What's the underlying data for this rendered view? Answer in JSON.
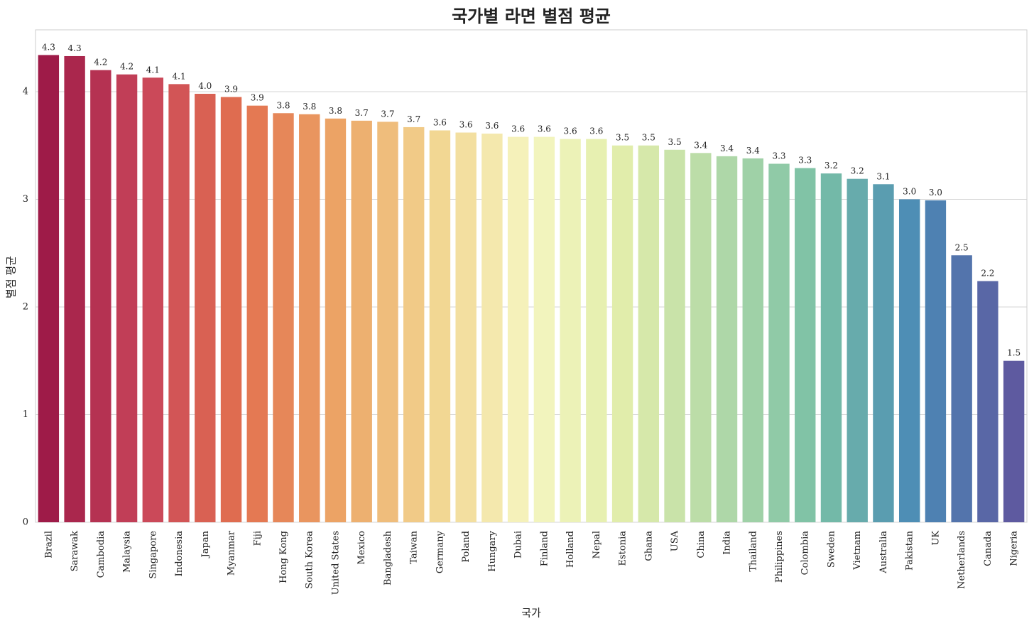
{
  "chart_data": {
    "type": "bar",
    "title": "국가별 라면 별점 평균",
    "xlabel": "국가",
    "ylabel": "별점 평균",
    "categories": [
      "Brazil",
      "Sarawak",
      "Cambodia",
      "Malaysia",
      "Singapore",
      "Indonesia",
      "Japan",
      "Myanmar",
      "Fiji",
      "Hong Kong",
      "South Korea",
      "United States",
      "Mexico",
      "Bangladesh",
      "Taiwan",
      "Germany",
      "Poland",
      "Hungary",
      "Dubai",
      "Finland",
      "Holland",
      "Nepal",
      "Estonia",
      "Ghana",
      "USA",
      "China",
      "India",
      "Thailand",
      "Philippines",
      "Colombia",
      "Sweden",
      "Vietnam",
      "Australia",
      "Pakistan",
      "UK",
      "Netherlands",
      "Canada",
      "Nigeria"
    ],
    "values": [
      4.34,
      4.33,
      4.2,
      4.16,
      4.13,
      4.07,
      3.98,
      3.95,
      3.87,
      3.8,
      3.79,
      3.75,
      3.73,
      3.72,
      3.67,
      3.64,
      3.62,
      3.61,
      3.58,
      3.58,
      3.56,
      3.56,
      3.5,
      3.5,
      3.46,
      3.43,
      3.4,
      3.38,
      3.33,
      3.29,
      3.24,
      3.19,
      3.14,
      3.0,
      2.99,
      2.48,
      2.24,
      1.5
    ],
    "value_labels": [
      "4.3",
      "4.3",
      "4.2",
      "4.2",
      "4.1",
      "4.1",
      "4.0",
      "3.9",
      "3.9",
      "3.8",
      "3.8",
      "3.8",
      "3.7",
      "3.7",
      "3.7",
      "3.6",
      "3.6",
      "3.6",
      "3.6",
      "3.6",
      "3.6",
      "3.6",
      "3.5",
      "3.5",
      "3.5",
      "3.4",
      "3.4",
      "3.4",
      "3.3",
      "3.3",
      "3.2",
      "3.2",
      "3.1",
      "3.0",
      "3.0",
      "2.5",
      "2.2",
      "1.5"
    ],
    "palette": [
      "#9e1b48",
      "#c9465a",
      "#e2714f",
      "#eca466",
      "#f2d590",
      "#f5f5c0",
      "#e0edaa",
      "#b0d8a8",
      "#78bfa6",
      "#4a8ab6",
      "#5e5aa0"
    ],
    "ylim": [
      0,
      4.574
    ],
    "yticks": [
      0,
      1,
      2,
      3,
      4
    ],
    "grid": true
  }
}
